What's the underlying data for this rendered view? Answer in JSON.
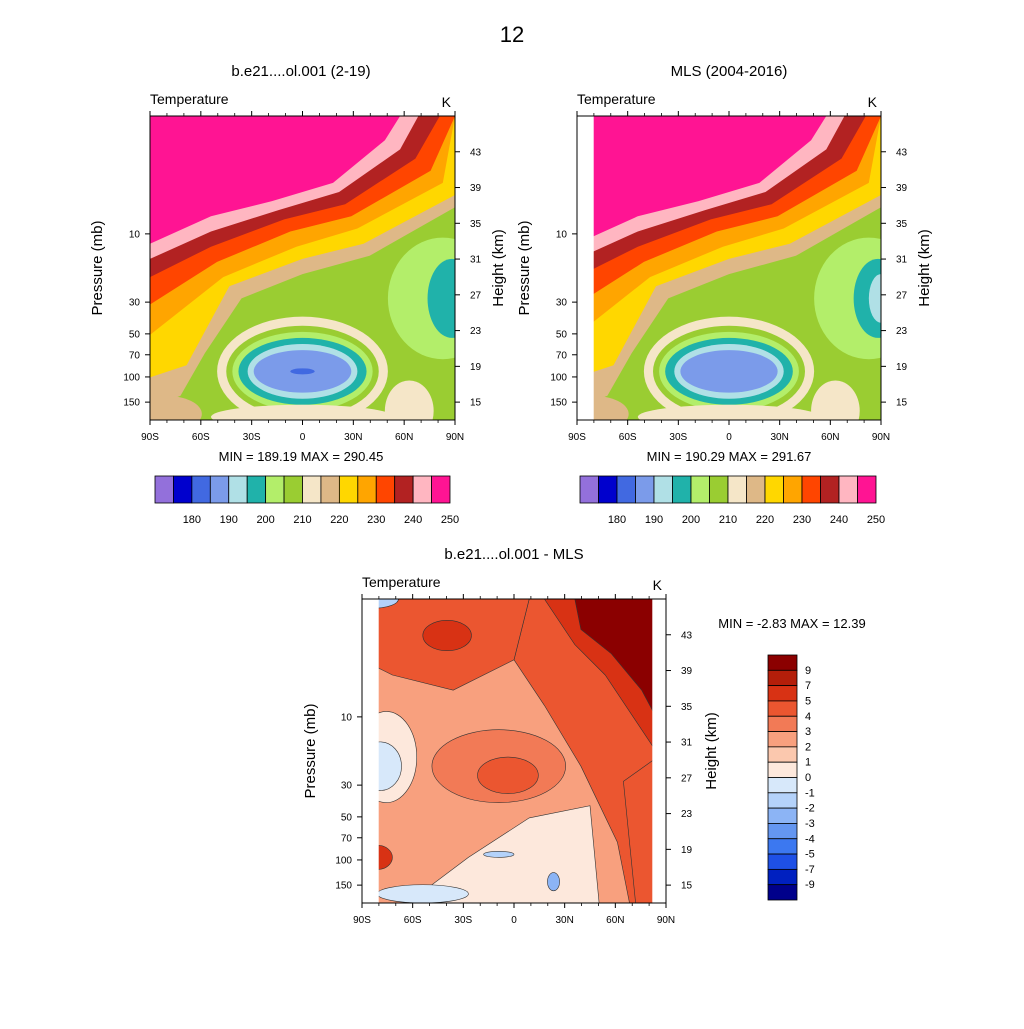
{
  "page_title": "12",
  "palette": {
    "temperature": [
      "#9370DB",
      "#0000CD",
      "#4169E1",
      "#7B9BEA",
      "#B0E0E6",
      "#20B2AA",
      "#B3EE6A",
      "#9ACD32",
      "#F5E6C8",
      "#DEB887",
      "#FFD700",
      "#FFA500",
      "#FF4500",
      "#B22222",
      "#FFB6C1",
      "#FF1493"
    ],
    "difference": [
      "#00008B",
      "#0020C0",
      "#1E50E6",
      "#3C78F0",
      "#6496F0",
      "#8CB4F5",
      "#B4D2FA",
      "#D7E8FA",
      "#FDE8DC",
      "#FBC8AE",
      "#F8A07E",
      "#F27A56",
      "#EB5630",
      "#D83214",
      "#B41E0A",
      "#8B0000"
    ]
  },
  "chart_data": [
    {
      "type": "heatmap",
      "panel": "model",
      "title": "b.e21....ol.001 (2-19)",
      "left_label": "Temperature",
      "right_label": "K",
      "ylabel": "Pressure (mb)",
      "ylabel_right": "Height (km)",
      "x_ticks": [
        "90S",
        "60S",
        "30S",
        "0",
        "30N",
        "60N",
        "90N"
      ],
      "x_values": [
        -90,
        -60,
        -30,
        0,
        30,
        60,
        90
      ],
      "y_ticks": [
        "10",
        "30",
        "50",
        "70",
        "100",
        "150"
      ],
      "y_values": [
        10,
        30,
        50,
        70,
        100,
        150
      ],
      "height_ticks": [
        "43",
        "39",
        "35",
        "31",
        "27",
        "23",
        "19",
        "15"
      ],
      "height_values": [
        43,
        39,
        35,
        31,
        27,
        23,
        19,
        15
      ],
      "xlim": [
        -90,
        90
      ],
      "ylim_pressure": [
        1.5,
        200
      ],
      "stats": "MIN = 189.19  MAX = 290.45",
      "min": 189.19,
      "max": 290.45
    },
    {
      "type": "heatmap",
      "panel": "obs",
      "title": "MLS (2004-2016)",
      "left_label": "Temperature",
      "right_label": "K",
      "ylabel": "Pressure (mb)",
      "ylabel_right": "Height (km)",
      "x_ticks": [
        "90S",
        "60S",
        "30S",
        "0",
        "30N",
        "60N",
        "90N"
      ],
      "x_values": [
        -90,
        -60,
        -30,
        0,
        30,
        60,
        90
      ],
      "y_ticks": [
        "10",
        "30",
        "50",
        "70",
        "100",
        "150"
      ],
      "y_values": [
        10,
        30,
        50,
        70,
        100,
        150
      ],
      "height_ticks": [
        "43",
        "39",
        "35",
        "31",
        "27",
        "23",
        "19",
        "15"
      ],
      "height_values": [
        43,
        39,
        35,
        31,
        27,
        23,
        19,
        15
      ],
      "xlim": [
        -90,
        90
      ],
      "ylim_pressure": [
        1.5,
        200
      ],
      "stats": "MIN = 190.29  MAX = 291.67",
      "min": 190.29,
      "max": 291.67
    },
    {
      "type": "heatmap",
      "panel": "difference",
      "title": "b.e21....ol.001 - MLS",
      "left_label": "Temperature",
      "right_label": "K",
      "ylabel": "Pressure (mb)",
      "ylabel_right": "Height (km)",
      "x_ticks": [
        "90S",
        "60S",
        "30S",
        "0",
        "30N",
        "60N",
        "90N"
      ],
      "x_values": [
        -90,
        -60,
        -30,
        0,
        30,
        60,
        90
      ],
      "y_ticks": [
        "10",
        "30",
        "50",
        "70",
        "100",
        "150"
      ],
      "y_values": [
        10,
        30,
        50,
        70,
        100,
        150
      ],
      "height_ticks": [
        "43",
        "39",
        "35",
        "31",
        "27",
        "23",
        "19",
        "15"
      ],
      "height_values": [
        43,
        39,
        35,
        31,
        27,
        23,
        19,
        15
      ],
      "xlim": [
        -90,
        90
      ],
      "ylim_pressure": [
        1.5,
        200
      ],
      "stats": "MIN =  -2.83  MAX =  12.39",
      "min": -2.83,
      "max": 12.39
    }
  ],
  "colorbars": {
    "temperature": {
      "labels": [
        "180",
        "190",
        "200",
        "210",
        "220",
        "230",
        "240",
        "250"
      ],
      "levels": [
        180,
        190,
        200,
        210,
        220,
        230,
        240,
        250
      ]
    },
    "difference": {
      "labels": [
        "9",
        "7",
        "5",
        "4",
        "3",
        "2",
        "1",
        "0",
        "-1",
        "-2",
        "-3",
        "-4",
        "-5",
        "-7",
        "-9"
      ],
      "levels": [
        9,
        7,
        5,
        4,
        3,
        2,
        1,
        0,
        -1,
        -2,
        -3,
        -4,
        -5,
        -7,
        -9
      ]
    }
  }
}
